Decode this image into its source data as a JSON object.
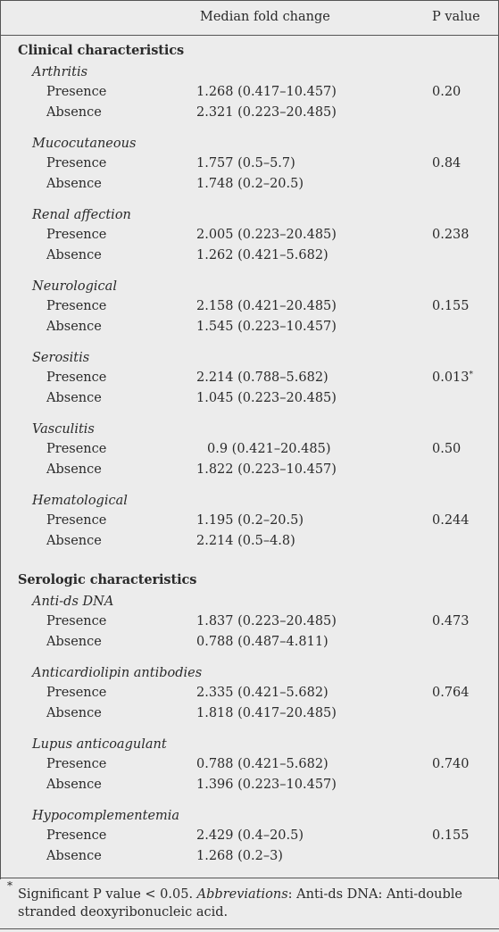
{
  "header": {
    "col_median": "Median fold change",
    "col_p": "P value"
  },
  "groups": [
    {
      "title": "Clinical characteristics",
      "categories": [
        {
          "name": "Arthritis",
          "p": "0.20",
          "marker": "",
          "rows": [
            {
              "label": "Presence",
              "value": "1.268 (0.417–10.457)"
            },
            {
              "label": "Absence",
              "value": "2.321 (0.223–20.485)"
            }
          ]
        },
        {
          "name": "Mucocutaneous",
          "p": "0.84",
          "marker": "",
          "rows": [
            {
              "label": "Presence",
              "value": "1.757 (0.5–5.7)"
            },
            {
              "label": "Absence",
              "value": "1.748 (0.2–20.5)"
            }
          ]
        },
        {
          "name": "Renal affection",
          "p": "0.238",
          "marker": "",
          "rows": [
            {
              "label": "Presence",
              "value": "2.005 (0.223–20.485)"
            },
            {
              "label": "Absence",
              "value": "1.262 (0.421–5.682)"
            }
          ]
        },
        {
          "name": "Neurological",
          "p": "0.155",
          "marker": "",
          "rows": [
            {
              "label": "Presence",
              "value": "2.158 (0.421–20.485)"
            },
            {
              "label": "Absence",
              "value": "1.545 (0.223–10.457)"
            }
          ]
        },
        {
          "name": "Serositis",
          "p": "0.013",
          "marker": "*",
          "rows": [
            {
              "label": "Presence",
              "value": "2.214 (0.788–5.682)"
            },
            {
              "label": "Absence",
              "value": "1.045 (0.223–20.485)"
            }
          ]
        },
        {
          "name": "Vasculitis",
          "p": "0.50",
          "marker": "",
          "rows": [
            {
              "label": "Presence",
              "value": "0.9 (0.421–20.485)"
            },
            {
              "label": "Absence",
              "value": "1.822 (0.223–10.457)"
            }
          ]
        },
        {
          "name": "Hematological",
          "p": "0.244",
          "marker": "",
          "rows": [
            {
              "label": "Presence",
              "value": "1.195 (0.2–20.5)"
            },
            {
              "label": "Absence",
              "value": "2.214 (0.5–4.8)"
            }
          ]
        }
      ]
    },
    {
      "title": "Serologic characteristics",
      "categories": [
        {
          "name": "Anti-ds DNA",
          "p": "0.473",
          "marker": "",
          "rows": [
            {
              "label": "Presence",
              "value": "1.837 (0.223–20.485)"
            },
            {
              "label": "Absence",
              "value": "0.788 (0.487–4.811)"
            }
          ]
        },
        {
          "name": "Anticardiolipin antibodies",
          "p": "0.764",
          "marker": "",
          "rows": [
            {
              "label": "Presence",
              "value": "2.335 (0.421–5.682)"
            },
            {
              "label": "Absence",
              "value": "1.818 (0.417–20.485)"
            }
          ]
        },
        {
          "name": "Lupus anticoagulant",
          "p": "0.740",
          "marker": "",
          "rows": [
            {
              "label": "Presence",
              "value": "0.788 (0.421–5.682)"
            },
            {
              "label": "Absence",
              "value": "1.396 (0.223–10.457)"
            }
          ]
        },
        {
          "name": "Hypocomplementemia",
          "p": "0.155",
          "marker": "",
          "rows": [
            {
              "label": "Presence",
              "value": "2.429 (0.4–20.5)"
            },
            {
              "label": "Absence",
              "value": "1.268 (0.2–3)"
            }
          ]
        }
      ]
    }
  ],
  "footnote": {
    "marker": "*",
    "text_1": "Significant P value < 0.05. ",
    "abbr_label": "Abbreviations",
    "text_2": ": Anti-ds DNA: Anti-double",
    "line_2": "stranded deoxyribonucleic acid."
  }
}
